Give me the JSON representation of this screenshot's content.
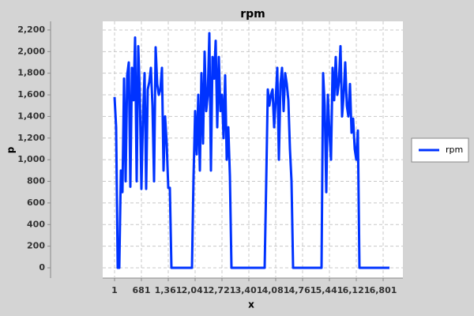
{
  "chart_data": {
    "type": "line",
    "title": "rpm",
    "x_label": "x",
    "y_label": "p",
    "x": [
      1,
      41,
      81,
      121,
      161,
      201,
      241,
      281,
      321,
      361,
      401,
      441,
      481,
      521,
      561,
      601,
      641,
      681,
      721,
      761,
      801,
      841,
      881,
      921,
      961,
      1001,
      1041,
      1081,
      1121,
      1161,
      1201,
      1241,
      1281,
      1321,
      1361,
      1401,
      1441,
      1961,
      2001,
      2041,
      2081,
      2121,
      2161,
      2201,
      2241,
      2281,
      2321,
      2361,
      2401,
      2441,
      2481,
      2521,
      2561,
      2601,
      2641,
      2681,
      2721,
      2761,
      2801,
      2841,
      2881,
      2921,
      2961,
      3801,
      3841,
      3881,
      3921,
      3961,
      4001,
      4041,
      4081,
      4121,
      4161,
      4201,
      4241,
      4281,
      4321,
      4361,
      4401,
      4441,
      4481,
      4521,
      5241,
      5281,
      5321,
      5361,
      5401,
      5441,
      5481,
      5521,
      5561,
      5601,
      5641,
      5681,
      5721,
      5761,
      5801,
      5841,
      5881,
      5921,
      5961,
      6001,
      6041,
      6081,
      6121,
      6161,
      6201,
      6961
    ],
    "series": [
      {
        "name": "rpm",
        "color": "#0033ff",
        "values": [
          1580,
          1300,
          0,
          0,
          900,
          700,
          1750,
          800,
          1780,
          1900,
          750,
          1850,
          1550,
          2130,
          800,
          2050,
          1600,
          730,
          1400,
          1800,
          730,
          1650,
          1720,
          1850,
          1500,
          800,
          2040,
          1700,
          1600,
          1650,
          1850,
          900,
          1400,
          1150,
          740,
          740,
          0,
          0,
          850,
          1450,
          1050,
          1600,
          900,
          1800,
          1150,
          2000,
          1450,
          1600,
          2170,
          900,
          1950,
          1750,
          2100,
          1300,
          1950,
          1450,
          1600,
          1200,
          1780,
          1000,
          1300,
          850,
          0,
          0,
          800,
          1650,
          1500,
          1600,
          1650,
          1300,
          1550,
          1850,
          1000,
          1700,
          1850,
          1450,
          1800,
          1700,
          1550,
          1100,
          800,
          0,
          0,
          1800,
          1500,
          700,
          1600,
          1250,
          1000,
          1850,
          1550,
          1950,
          1600,
          1720,
          2050,
          1400,
          1600,
          1900,
          1500,
          1400,
          1700,
          1250,
          1380,
          1100,
          1000,
          1270,
          0,
          0
        ]
      }
    ],
    "xlim": [
      -299,
      7301
    ],
    "xticks": [
      1,
      681,
      {
        "value": 1361,
        "label": "1,361"
      },
      {
        "value": 2041,
        "label": "2,041"
      },
      {
        "value": 2721,
        "label": "2,721"
      },
      {
        "value": 3401,
        "label": "3,401"
      },
      {
        "value": 4081,
        "label": "4,081"
      },
      {
        "value": 4761,
        "label": "4,761"
      },
      {
        "value": 5441,
        "label": "5,441"
      },
      {
        "value": 6121,
        "label": "6,121"
      },
      {
        "value": 6801,
        "label": "6,801"
      }
    ],
    "ylim": [
      -95,
      2280
    ],
    "yticks": [
      0,
      200,
      400,
      600,
      800,
      {
        "value": 1000,
        "label": "1,000"
      },
      {
        "value": 1200,
        "label": "1,200"
      },
      {
        "value": 1400,
        "label": "1,400"
      },
      {
        "value": 1600,
        "label": "1,600"
      },
      {
        "value": 1800,
        "label": "1,800"
      },
      {
        "value": 2000,
        "label": "2,000"
      },
      {
        "value": 2200,
        "label": "2,200"
      }
    ],
    "grid": true,
    "legend": "right"
  }
}
